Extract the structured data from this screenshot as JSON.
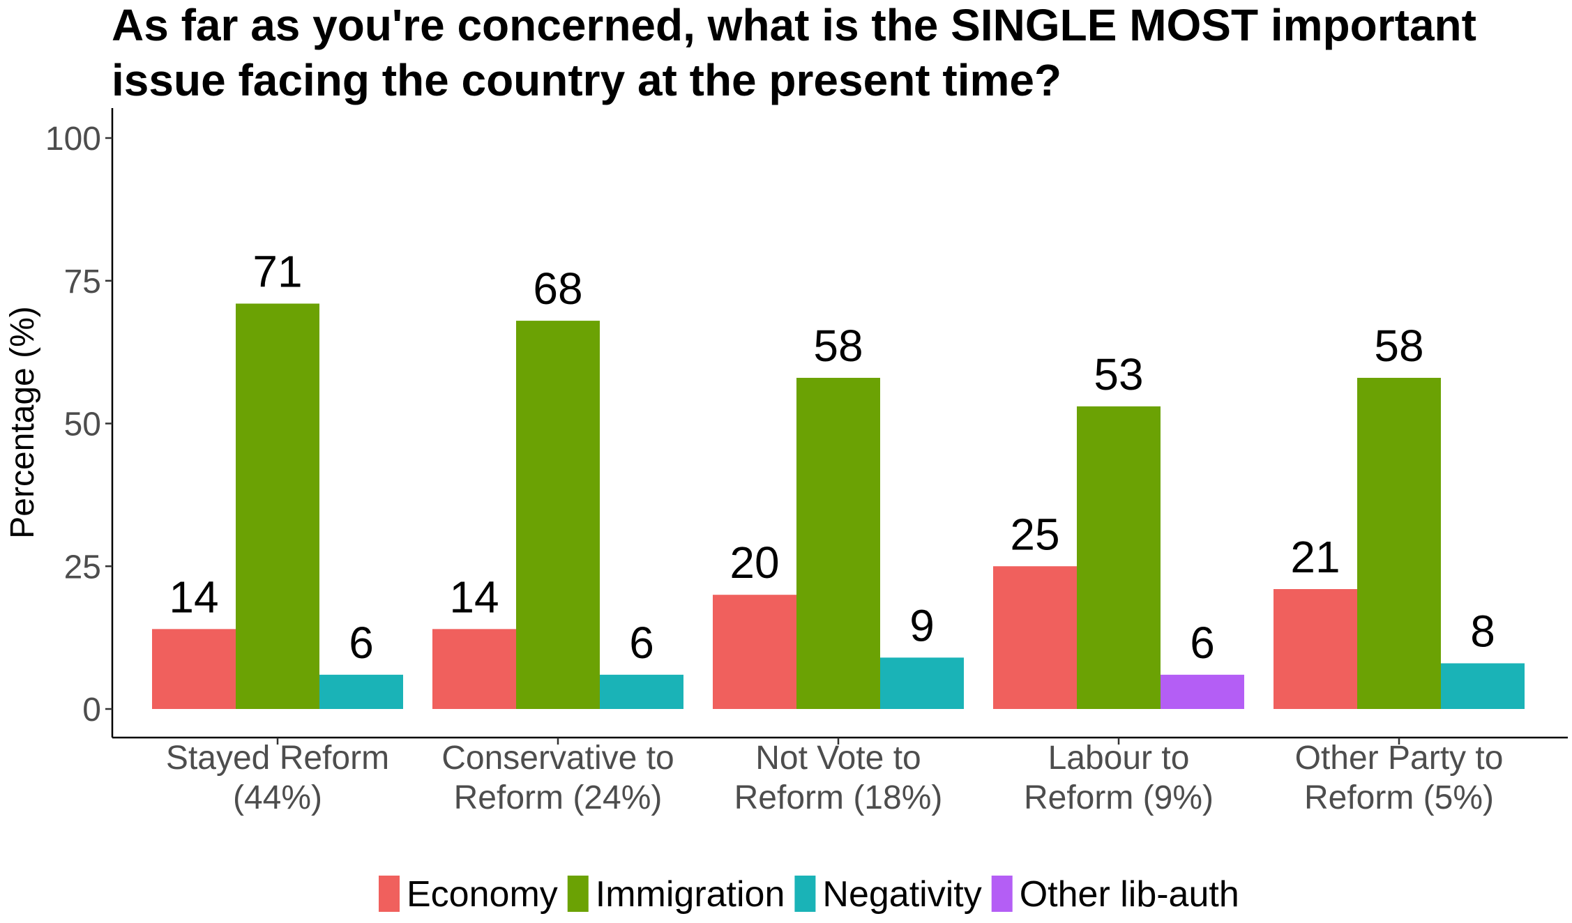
{
  "chart_data": {
    "type": "bar",
    "title_lines": [
      "As far as you're concerned, what is the SINGLE MOST important",
      "issue facing the country at the present time?"
    ],
    "xlabel": "",
    "ylabel": "Percentage (%)",
    "ylim": [
      0,
      105
    ],
    "yticks": [
      "0",
      "25",
      "50",
      "75",
      "100"
    ],
    "ytick_values": [
      0,
      25,
      50,
      75,
      100
    ],
    "grid": false,
    "legend_position": "bottom",
    "groups": [
      {
        "label_lines": [
          "Stayed Reform",
          "(44%)"
        ],
        "bars": [
          {
            "series": "Economy",
            "value": 14,
            "label": "14"
          },
          {
            "series": "Immigration",
            "value": 71,
            "label": "71"
          },
          {
            "series": "Negativity",
            "value": 6,
            "label": "6"
          }
        ]
      },
      {
        "label_lines": [
          "Conservative to",
          "Reform (24%)"
        ],
        "bars": [
          {
            "series": "Economy",
            "value": 14,
            "label": "14"
          },
          {
            "series": "Immigration",
            "value": 68,
            "label": "68"
          },
          {
            "series": "Negativity",
            "value": 6,
            "label": "6"
          }
        ]
      },
      {
        "label_lines": [
          "Not Vote to",
          "Reform (18%)"
        ],
        "bars": [
          {
            "series": "Economy",
            "value": 20,
            "label": "20"
          },
          {
            "series": "Immigration",
            "value": 58,
            "label": "58"
          },
          {
            "series": "Negativity",
            "value": 9,
            "label": "9"
          }
        ]
      },
      {
        "label_lines": [
          "Labour to",
          "Reform (9%)"
        ],
        "bars": [
          {
            "series": "Economy",
            "value": 25,
            "label": "25"
          },
          {
            "series": "Immigration",
            "value": 53,
            "label": "53"
          },
          {
            "series": "Other lib-auth",
            "value": 6,
            "label": "6"
          }
        ]
      },
      {
        "label_lines": [
          "Other Party to",
          "Reform (5%)"
        ],
        "bars": [
          {
            "series": "Economy",
            "value": 21,
            "label": "21"
          },
          {
            "series": "Immigration",
            "value": 58,
            "label": "58"
          },
          {
            "series": "Negativity",
            "value": 8,
            "label": "8"
          }
        ]
      }
    ],
    "legend": [
      {
        "name": "Economy",
        "color": "#F0605D"
      },
      {
        "name": "Immigration",
        "color": "#6BA204"
      },
      {
        "name": "Negativity",
        "color": "#1AB3B7"
      },
      {
        "name": "Other lib-auth",
        "color": "#B45EF5"
      }
    ]
  }
}
